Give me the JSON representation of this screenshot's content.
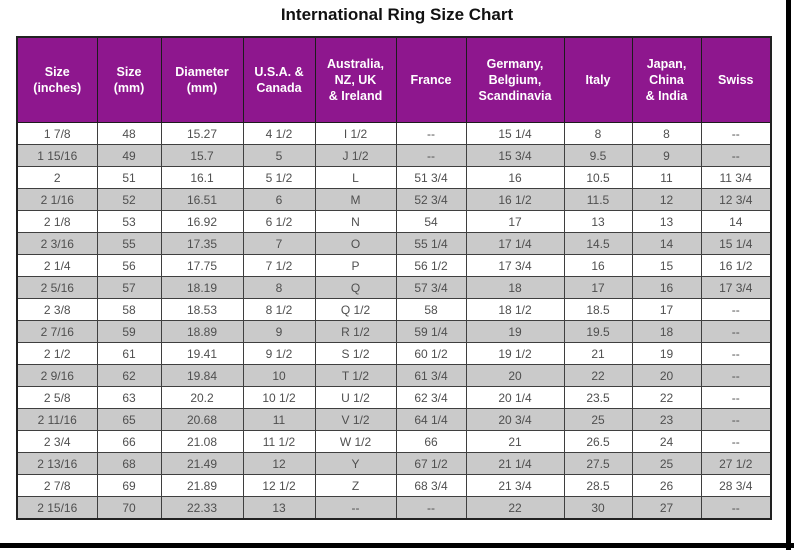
{
  "title": "International Ring Size Chart",
  "colors": {
    "header_bg": "#8e178e",
    "header_text": "#ffffff",
    "alt_row_bg": "#cacaca",
    "cell_text": "#4f4f4f",
    "border": "#3f3f3f"
  },
  "chart_data": {
    "type": "table",
    "title": "International Ring Size Chart",
    "columns": [
      "Size\n(inches)",
      "Size\n(mm)",
      "Diameter\n(mm)",
      "U.S.A. &\nCanada",
      "Australia,\nNZ, UK\n& Ireland",
      "France",
      "Germany,\nBelgium,\nScandinavia",
      "Italy",
      "Japan,\nChina\n& India",
      "Swiss"
    ],
    "rows": [
      [
        "1 7/8",
        "48",
        "15.27",
        "4 1/2",
        "I 1/2",
        "--",
        "15 1/4",
        "8",
        "8",
        "--"
      ],
      [
        "1 15/16",
        "49",
        "15.7",
        "5",
        "J 1/2",
        "--",
        "15 3/4",
        "9.5",
        "9",
        "--"
      ],
      [
        "2",
        "51",
        "16.1",
        "5 1/2",
        "L",
        "51 3/4",
        "16",
        "10.5",
        "11",
        "11 3/4"
      ],
      [
        "2 1/16",
        "52",
        "16.51",
        "6",
        "M",
        "52 3/4",
        "16 1/2",
        "11.5",
        "12",
        "12 3/4"
      ],
      [
        "2 1/8",
        "53",
        "16.92",
        "6 1/2",
        "N",
        "54",
        "17",
        "13",
        "13",
        "14"
      ],
      [
        "2 3/16",
        "55",
        "17.35",
        "7",
        "O",
        "55 1/4",
        "17 1/4",
        "14.5",
        "14",
        "15 1/4"
      ],
      [
        "2 1/4",
        "56",
        "17.75",
        "7 1/2",
        "P",
        "56 1/2",
        "17 3/4",
        "16",
        "15",
        "16 1/2"
      ],
      [
        "2 5/16",
        "57",
        "18.19",
        "8",
        "Q",
        "57 3/4",
        "18",
        "17",
        "16",
        "17 3/4"
      ],
      [
        "2 3/8",
        "58",
        "18.53",
        "8 1/2",
        "Q 1/2",
        "58",
        "18 1/2",
        "18.5",
        "17",
        "--"
      ],
      [
        "2 7/16",
        "59",
        "18.89",
        "9",
        "R 1/2",
        "59 1/4",
        "19",
        "19.5",
        "18",
        "--"
      ],
      [
        "2 1/2",
        "61",
        "19.41",
        "9 1/2",
        "S 1/2",
        "60 1/2",
        "19 1/2",
        "21",
        "19",
        "--"
      ],
      [
        "2 9/16",
        "62",
        "19.84",
        "10",
        "T 1/2",
        "61 3/4",
        "20",
        "22",
        "20",
        "--"
      ],
      [
        "2 5/8",
        "63",
        "20.2",
        "10 1/2",
        "U 1/2",
        "62 3/4",
        "20 1/4",
        "23.5",
        "22",
        "--"
      ],
      [
        "2 11/16",
        "65",
        "20.68",
        "11",
        "V 1/2",
        "64 1/4",
        "20 3/4",
        "25",
        "23",
        "--"
      ],
      [
        "2 3/4",
        "66",
        "21.08",
        "11 1/2",
        "W 1/2",
        "66",
        "21",
        "26.5",
        "24",
        "--"
      ],
      [
        "2 13/16",
        "68",
        "21.49",
        "12",
        "Y",
        "67 1/2",
        "21 1/4",
        "27.5",
        "25",
        "27 1/2"
      ],
      [
        "2 7/8",
        "69",
        "21.89",
        "12 1/2",
        "Z",
        "68 3/4",
        "21 3/4",
        "28.5",
        "26",
        "28 3/4"
      ],
      [
        "2 15/16",
        "70",
        "22.33",
        "13",
        "--",
        "--",
        "22",
        "30",
        "27",
        "--"
      ]
    ]
  }
}
